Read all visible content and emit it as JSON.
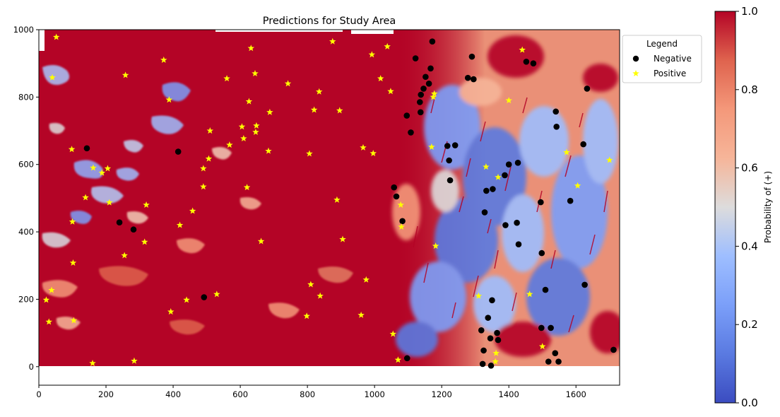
{
  "chart_data": {
    "type": "scatter",
    "title": "Predictions for Study Area",
    "xlim": [
      0,
      1730
    ],
    "ylim": [
      -55,
      1000
    ],
    "x_ticks": [
      0,
      200,
      400,
      600,
      800,
      1000,
      1200,
      1400,
      1600
    ],
    "y_ticks": [
      0,
      200,
      400,
      600,
      800,
      1000
    ],
    "legend": {
      "title": "Legend",
      "placement": "upper-right-outside"
    },
    "background": "probability heatmap raster",
    "colorbar": {
      "label": "Probability of (+)",
      "range": [
        0.0,
        1.0
      ],
      "ticks": [
        "0.0",
        "0.2",
        "0.4",
        "0.6",
        "0.8",
        "1.0"
      ],
      "colormap": "coolwarm"
    },
    "series": [
      {
        "name": "Negative",
        "color": "#000000",
        "marker": "circle",
        "points": [
          [
            143,
            648
          ],
          [
            415,
            638
          ],
          [
            240,
            428
          ],
          [
            282,
            407
          ],
          [
            492,
            206
          ],
          [
            1096,
            745
          ],
          [
            1108,
            695
          ],
          [
            1122,
            915
          ],
          [
            1135,
            785
          ],
          [
            1138,
            807
          ],
          [
            1137,
            755
          ],
          [
            1146,
            825
          ],
          [
            1152,
            860
          ],
          [
            1162,
            840
          ],
          [
            1167,
            885
          ],
          [
            1172,
            965
          ],
          [
            1058,
            532
          ],
          [
            1065,
            505
          ],
          [
            1083,
            432
          ],
          [
            1097,
            25
          ],
          [
            1217,
            655
          ],
          [
            1222,
            612
          ],
          [
            1225,
            553
          ],
          [
            1240,
            657
          ],
          [
            1278,
            857
          ],
          [
            1290,
            920
          ],
          [
            1295,
            853
          ],
          [
            1318,
            108
          ],
          [
            1322,
            8
          ],
          [
            1325,
            48
          ],
          [
            1328,
            458
          ],
          [
            1333,
            522
          ],
          [
            1338,
            145
          ],
          [
            1345,
            84
          ],
          [
            1347,
            3
          ],
          [
            1350,
            197
          ],
          [
            1352,
            527
          ],
          [
            1365,
            100
          ],
          [
            1368,
            79
          ],
          [
            1388,
            568
          ],
          [
            1390,
            420
          ],
          [
            1400,
            600
          ],
          [
            1424,
            427
          ],
          [
            1427,
            605
          ],
          [
            1429,
            363
          ],
          [
            1452,
            905
          ],
          [
            1473,
            900
          ],
          [
            1495,
            488
          ],
          [
            1497,
            115
          ],
          [
            1498,
            337
          ],
          [
            1509,
            228
          ],
          [
            1518,
            15
          ],
          [
            1525,
            115
          ],
          [
            1538,
            40
          ],
          [
            1540,
            757
          ],
          [
            1542,
            712
          ],
          [
            1548,
            15
          ],
          [
            1583,
            492
          ],
          [
            1622,
            660
          ],
          [
            1626,
            243
          ],
          [
            1633,
            825
          ],
          [
            1712,
            50
          ]
        ]
      },
      {
        "name": "Positive",
        "color": "#ffff00",
        "marker": "star",
        "points": [
          [
            52,
            978
          ],
          [
            40,
            858
          ],
          [
            22,
            198
          ],
          [
            30,
            133
          ],
          [
            38,
            227
          ],
          [
            98,
            645
          ],
          [
            100,
            430
          ],
          [
            102,
            308
          ],
          [
            104,
            137
          ],
          [
            160,
            10
          ],
          [
            162,
            590
          ],
          [
            188,
            575
          ],
          [
            205,
            588
          ],
          [
            210,
            487
          ],
          [
            139,
            502
          ],
          [
            258,
            865
          ],
          [
            255,
            330
          ],
          [
            315,
            370
          ],
          [
            320,
            480
          ],
          [
            284,
            17
          ],
          [
            372,
            910
          ],
          [
            388,
            792
          ],
          [
            393,
            163
          ],
          [
            420,
            420
          ],
          [
            440,
            198
          ],
          [
            458,
            462
          ],
          [
            490,
            588
          ],
          [
            490,
            534
          ],
          [
            510,
            700
          ],
          [
            506,
            617
          ],
          [
            530,
            215
          ],
          [
            560,
            855
          ],
          [
            568,
            658
          ],
          [
            605,
            712
          ],
          [
            610,
            677
          ],
          [
            620,
            532
          ],
          [
            626,
            787
          ],
          [
            632,
            945
          ],
          [
            644,
            870
          ],
          [
            646,
            696
          ],
          [
            648,
            715
          ],
          [
            662,
            372
          ],
          [
            684,
            640
          ],
          [
            688,
            755
          ],
          [
            742,
            840
          ],
          [
            798,
            150
          ],
          [
            806,
            632
          ],
          [
            810,
            244
          ],
          [
            820,
            762
          ],
          [
            835,
            816
          ],
          [
            838,
            210
          ],
          [
            875,
            965
          ],
          [
            888,
            495
          ],
          [
            896,
            760
          ],
          [
            905,
            378
          ],
          [
            966,
            650
          ],
          [
            960,
            153
          ],
          [
            975,
            258
          ],
          [
            992,
            926
          ],
          [
            996,
            633
          ],
          [
            1018,
            855
          ],
          [
            1038,
            950
          ],
          [
            1048,
            817
          ],
          [
            1055,
            97
          ],
          [
            1070,
            20
          ],
          [
            1078,
            480
          ],
          [
            1080,
            415
          ],
          [
            1170,
            652
          ],
          [
            1175,
            800
          ],
          [
            1178,
            810
          ],
          [
            1182,
            358
          ],
          [
            1310,
            210
          ],
          [
            1332,
            593
          ],
          [
            1360,
            15
          ],
          [
            1362,
            40
          ],
          [
            1368,
            562
          ],
          [
            1400,
            790
          ],
          [
            1440,
            940
          ],
          [
            1462,
            215
          ],
          [
            1500,
            60
          ],
          [
            1572,
            636
          ],
          [
            1605,
            537
          ],
          [
            1700,
            613
          ]
        ]
      }
    ]
  }
}
